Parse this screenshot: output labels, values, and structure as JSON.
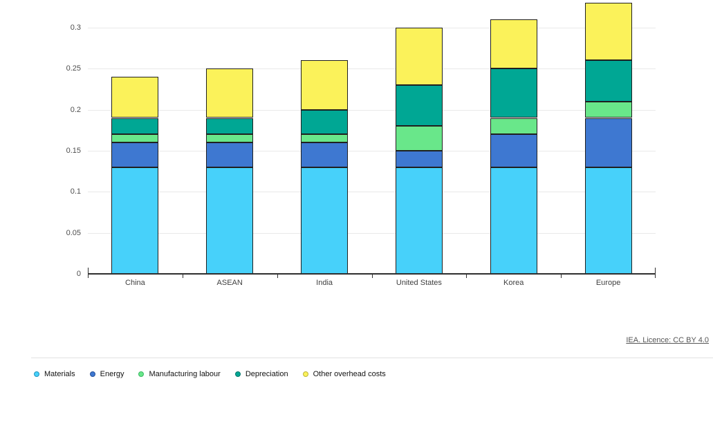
{
  "attribution": {
    "label": "IEA. Licence: CC BY 4.0"
  },
  "chart_data": {
    "type": "bar",
    "stacked": true,
    "title": "",
    "xlabel": "",
    "ylabel": "",
    "categories": [
      "China",
      "ASEAN",
      "India",
      "United States",
      "Korea",
      "Europe"
    ],
    "series": [
      {
        "name": "Materials",
        "color": "#47D1FA",
        "edge": "#2193BE",
        "values": [
          0.13,
          0.13,
          0.13,
          0.13,
          0.13,
          0.13
        ]
      },
      {
        "name": "Energy",
        "color": "#3E78D1",
        "edge": "#26519B",
        "values": [
          0.03,
          0.03,
          0.03,
          0.02,
          0.04,
          0.06
        ]
      },
      {
        "name": "Manufacturing labour",
        "color": "#69E78A",
        "edge": "#3CB863",
        "values": [
          0.01,
          0.01,
          0.01,
          0.03,
          0.02,
          0.02
        ]
      },
      {
        "name": "Depreciation",
        "color": "#00A794",
        "edge": "#00766A",
        "values": [
          0.02,
          0.02,
          0.03,
          0.05,
          0.06,
          0.05
        ]
      },
      {
        "name": "Other overhead costs",
        "color": "#FBF25A",
        "edge": "#BCB43A",
        "values": [
          0.05,
          0.06,
          0.06,
          0.07,
          0.06,
          0.07
        ]
      }
    ],
    "totals": [
      0.24,
      0.25,
      0.26,
      0.3,
      0.31,
      0.33
    ],
    "ylim": [
      0,
      0.33
    ],
    "yticks": [
      0,
      0.05,
      0.1,
      0.15,
      0.2,
      0.25,
      0.3
    ],
    "ytick_labels": [
      "0",
      "0.05",
      "0.1",
      "0.15",
      "0.2",
      "0.25",
      "0.3"
    ],
    "grid": true,
    "legend_position": "bottom",
    "segment_border_color": "#1f1f1f"
  }
}
